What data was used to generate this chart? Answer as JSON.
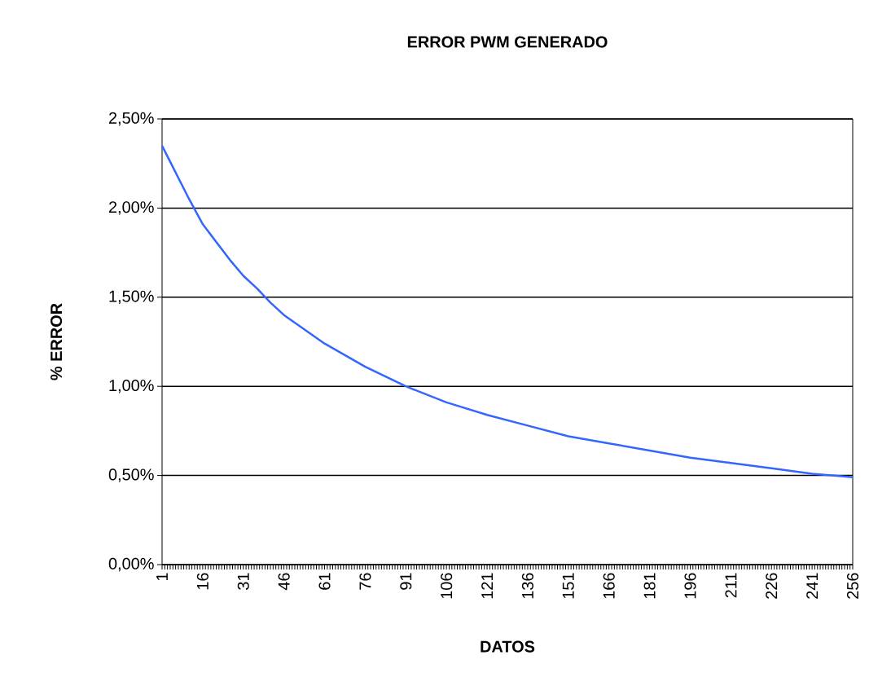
{
  "chart_data": {
    "type": "line",
    "title": "ERROR PWM GENERADO",
    "xlabel": "DATOS",
    "ylabel": "% ERROR",
    "x": [
      1,
      6,
      11,
      16,
      21,
      26,
      31,
      36,
      41,
      46,
      61,
      76,
      91,
      106,
      121,
      136,
      151,
      166,
      181,
      196,
      211,
      226,
      241,
      256
    ],
    "series": [
      {
        "color": "#3366ff",
        "values": [
          2.35,
          2.2,
          2.05,
          1.91,
          1.81,
          1.71,
          1.62,
          1.55,
          1.47,
          1.4,
          1.24,
          1.11,
          1.0,
          0.91,
          0.84,
          0.78,
          0.72,
          0.68,
          0.64,
          0.6,
          0.57,
          0.54,
          0.51,
          0.49
        ]
      }
    ],
    "xlim": [
      1,
      256
    ],
    "ylim": [
      0,
      2.5
    ],
    "yticks": [
      {
        "value": 0,
        "label": "0,00%"
      },
      {
        "value": 0.5,
        "label": "0,50%"
      },
      {
        "value": 1,
        "label": "1,00%"
      },
      {
        "value": 1.5,
        "label": "1,50%"
      },
      {
        "value": 2,
        "label": "2,00%"
      },
      {
        "value": 2.5,
        "label": "2,50%"
      }
    ],
    "xticks": [
      1,
      {
        "value": 2,
        "label": null
      },
      {
        "value": 3,
        "label": null
      },
      {
        "value": 4,
        "label": null
      },
      {
        "value": 5,
        "label": null
      },
      {
        "value": 6,
        "label": null
      },
      {
        "value": 7,
        "label": null
      },
      {
        "value": 8,
        "label": null
      },
      {
        "value": 9,
        "label": null
      },
      {
        "value": 10,
        "label": null
      },
      {
        "value": 11,
        "label": null
      },
      {
        "value": 12,
        "label": null
      },
      {
        "value": 13,
        "label": null
      },
      {
        "value": 14,
        "label": null
      },
      {
        "value": 15,
        "label": null
      },
      16,
      {
        "value": 17,
        "label": null
      },
      {
        "value": 18,
        "label": null
      },
      {
        "value": 19,
        "label": null
      },
      {
        "value": 20,
        "label": null
      },
      {
        "value": 21,
        "label": null
      },
      {
        "value": 22,
        "label": null
      },
      {
        "value": 23,
        "label": null
      },
      {
        "value": 24,
        "label": null
      },
      {
        "value": 25,
        "label": null
      },
      {
        "value": 26,
        "label": null
      },
      {
        "value": 27,
        "label": null
      },
      {
        "value": 28,
        "label": null
      },
      {
        "value": 29,
        "label": null
      },
      {
        "value": 30,
        "label": null
      },
      31,
      {
        "value": 32,
        "label": null
      },
      {
        "value": 33,
        "label": null
      },
      {
        "value": 34,
        "label": null
      },
      {
        "value": 35,
        "label": null
      },
      {
        "value": 36,
        "label": null
      },
      {
        "value": 37,
        "label": null
      },
      {
        "value": 38,
        "label": null
      },
      {
        "value": 39,
        "label": null
      },
      {
        "value": 40,
        "label": null
      },
      {
        "value": 41,
        "label": null
      },
      {
        "value": 42,
        "label": null
      },
      {
        "value": 43,
        "label": null
      },
      {
        "value": 44,
        "label": null
      },
      {
        "value": 45,
        "label": null
      },
      46,
      {
        "value": 47,
        "label": null
      },
      {
        "value": 48,
        "label": null
      },
      {
        "value": 49,
        "label": null
      },
      {
        "value": 50,
        "label": null
      },
      {
        "value": 51,
        "label": null
      },
      {
        "value": 52,
        "label": null
      },
      {
        "value": 53,
        "label": null
      },
      {
        "value": 54,
        "label": null
      },
      {
        "value": 55,
        "label": null
      },
      {
        "value": 56,
        "label": null
      },
      {
        "value": 57,
        "label": null
      },
      {
        "value": 58,
        "label": null
      },
      {
        "value": 59,
        "label": null
      },
      {
        "value": 60,
        "label": null
      },
      61,
      {
        "value": 62,
        "label": null
      },
      {
        "value": 63,
        "label": null
      },
      {
        "value": 64,
        "label": null
      },
      {
        "value": 65,
        "label": null
      },
      {
        "value": 66,
        "label": null
      },
      {
        "value": 67,
        "label": null
      },
      {
        "value": 68,
        "label": null
      },
      {
        "value": 69,
        "label": null
      },
      {
        "value": 70,
        "label": null
      },
      {
        "value": 71,
        "label": null
      },
      {
        "value": 72,
        "label": null
      },
      {
        "value": 73,
        "label": null
      },
      {
        "value": 74,
        "label": null
      },
      {
        "value": 75,
        "label": null
      },
      76,
      {
        "value": 77,
        "label": null
      },
      {
        "value": 78,
        "label": null
      },
      {
        "value": 79,
        "label": null
      },
      {
        "value": 80,
        "label": null
      },
      {
        "value": 81,
        "label": null
      },
      {
        "value": 82,
        "label": null
      },
      {
        "value": 83,
        "label": null
      },
      {
        "value": 84,
        "label": null
      },
      {
        "value": 85,
        "label": null
      },
      {
        "value": 86,
        "label": null
      },
      {
        "value": 87,
        "label": null
      },
      {
        "value": 88,
        "label": null
      },
      {
        "value": 89,
        "label": null
      },
      {
        "value": 90,
        "label": null
      },
      91,
      {
        "value": 92,
        "label": null
      },
      {
        "value": 93,
        "label": null
      },
      {
        "value": 94,
        "label": null
      },
      {
        "value": 95,
        "label": null
      },
      {
        "value": 96,
        "label": null
      },
      {
        "value": 97,
        "label": null
      },
      {
        "value": 98,
        "label": null
      },
      {
        "value": 99,
        "label": null
      },
      {
        "value": 100,
        "label": null
      },
      {
        "value": 101,
        "label": null
      },
      {
        "value": 102,
        "label": null
      },
      {
        "value": 103,
        "label": null
      },
      {
        "value": 104,
        "label": null
      },
      {
        "value": 105,
        "label": null
      },
      106,
      {
        "value": 107,
        "label": null
      },
      {
        "value": 108,
        "label": null
      },
      {
        "value": 109,
        "label": null
      },
      {
        "value": 110,
        "label": null
      },
      {
        "value": 111,
        "label": null
      },
      {
        "value": 112,
        "label": null
      },
      {
        "value": 113,
        "label": null
      },
      {
        "value": 114,
        "label": null
      },
      {
        "value": 115,
        "label": null
      },
      {
        "value": 116,
        "label": null
      },
      {
        "value": 117,
        "label": null
      },
      {
        "value": 118,
        "label": null
      },
      {
        "value": 119,
        "label": null
      },
      {
        "value": 120,
        "label": null
      },
      121,
      {
        "value": 122,
        "label": null
      },
      {
        "value": 123,
        "label": null
      },
      {
        "value": 124,
        "label": null
      },
      {
        "value": 125,
        "label": null
      },
      {
        "value": 126,
        "label": null
      },
      {
        "value": 127,
        "label": null
      },
      {
        "value": 128,
        "label": null
      },
      {
        "value": 129,
        "label": null
      },
      {
        "value": 130,
        "label": null
      },
      {
        "value": 131,
        "label": null
      },
      {
        "value": 132,
        "label": null
      },
      {
        "value": 133,
        "label": null
      },
      {
        "value": 134,
        "label": null
      },
      {
        "value": 135,
        "label": null
      },
      136,
      {
        "value": 137,
        "label": null
      },
      {
        "value": 138,
        "label": null
      },
      {
        "value": 139,
        "label": null
      },
      {
        "value": 140,
        "label": null
      },
      {
        "value": 141,
        "label": null
      },
      {
        "value": 142,
        "label": null
      },
      {
        "value": 143,
        "label": null
      },
      {
        "value": 144,
        "label": null
      },
      {
        "value": 145,
        "label": null
      },
      {
        "value": 146,
        "label": null
      },
      {
        "value": 147,
        "label": null
      },
      {
        "value": 148,
        "label": null
      },
      {
        "value": 149,
        "label": null
      },
      {
        "value": 150,
        "label": null
      },
      151,
      {
        "value": 152,
        "label": null
      },
      {
        "value": 153,
        "label": null
      },
      {
        "value": 154,
        "label": null
      },
      {
        "value": 155,
        "label": null
      },
      {
        "value": 156,
        "label": null
      },
      {
        "value": 157,
        "label": null
      },
      {
        "value": 158,
        "label": null
      },
      {
        "value": 159,
        "label": null
      },
      {
        "value": 160,
        "label": null
      },
      {
        "value": 161,
        "label": null
      },
      {
        "value": 162,
        "label": null
      },
      {
        "value": 163,
        "label": null
      },
      {
        "value": 164,
        "label": null
      },
      {
        "value": 165,
        "label": null
      },
      166,
      {
        "value": 167,
        "label": null
      },
      {
        "value": 168,
        "label": null
      },
      {
        "value": 169,
        "label": null
      },
      {
        "value": 170,
        "label": null
      },
      {
        "value": 171,
        "label": null
      },
      {
        "value": 172,
        "label": null
      },
      {
        "value": 173,
        "label": null
      },
      {
        "value": 174,
        "label": null
      },
      {
        "value": 175,
        "label": null
      },
      {
        "value": 176,
        "label": null
      },
      {
        "value": 177,
        "label": null
      },
      {
        "value": 178,
        "label": null
      },
      {
        "value": 179,
        "label": null
      },
      {
        "value": 180,
        "label": null
      },
      181,
      {
        "value": 182,
        "label": null
      },
      {
        "value": 183,
        "label": null
      },
      {
        "value": 184,
        "label": null
      },
      {
        "value": 185,
        "label": null
      },
      {
        "value": 186,
        "label": null
      },
      {
        "value": 187,
        "label": null
      },
      {
        "value": 188,
        "label": null
      },
      {
        "value": 189,
        "label": null
      },
      {
        "value": 190,
        "label": null
      },
      {
        "value": 191,
        "label": null
      },
      {
        "value": 192,
        "label": null
      },
      {
        "value": 193,
        "label": null
      },
      {
        "value": 194,
        "label": null
      },
      {
        "value": 195,
        "label": null
      },
      196,
      {
        "value": 197,
        "label": null
      },
      {
        "value": 198,
        "label": null
      },
      {
        "value": 199,
        "label": null
      },
      {
        "value": 200,
        "label": null
      },
      {
        "value": 201,
        "label": null
      },
      {
        "value": 202,
        "label": null
      },
      {
        "value": 203,
        "label": null
      },
      {
        "value": 204,
        "label": null
      },
      {
        "value": 205,
        "label": null
      },
      {
        "value": 206,
        "label": null
      },
      {
        "value": 207,
        "label": null
      },
      {
        "value": 208,
        "label": null
      },
      {
        "value": 209,
        "label": null
      },
      {
        "value": 210,
        "label": null
      },
      211,
      {
        "value": 212,
        "label": null
      },
      {
        "value": 213,
        "label": null
      },
      {
        "value": 214,
        "label": null
      },
      {
        "value": 215,
        "label": null
      },
      {
        "value": 216,
        "label": null
      },
      {
        "value": 217,
        "label": null
      },
      {
        "value": 218,
        "label": null
      },
      {
        "value": 219,
        "label": null
      },
      {
        "value": 220,
        "label": null
      },
      {
        "value": 221,
        "label": null
      },
      {
        "value": 222,
        "label": null
      },
      {
        "value": 223,
        "label": null
      },
      {
        "value": 224,
        "label": null
      },
      {
        "value": 225,
        "label": null
      },
      226,
      {
        "value": 227,
        "label": null
      },
      {
        "value": 228,
        "label": null
      },
      {
        "value": 229,
        "label": null
      },
      {
        "value": 230,
        "label": null
      },
      {
        "value": 231,
        "label": null
      },
      {
        "value": 232,
        "label": null
      },
      {
        "value": 233,
        "label": null
      },
      {
        "value": 234,
        "label": null
      },
      {
        "value": 235,
        "label": null
      },
      {
        "value": 236,
        "label": null
      },
      {
        "value": 237,
        "label": null
      },
      {
        "value": 238,
        "label": null
      },
      {
        "value": 239,
        "label": null
      },
      {
        "value": 240,
        "label": null
      },
      241,
      {
        "value": 242,
        "label": null
      },
      {
        "value": 243,
        "label": null
      },
      {
        "value": 244,
        "label": null
      },
      {
        "value": 245,
        "label": null
      },
      {
        "value": 246,
        "label": null
      },
      {
        "value": 247,
        "label": null
      },
      {
        "value": 248,
        "label": null
      },
      {
        "value": 249,
        "label": null
      },
      {
        "value": 250,
        "label": null
      },
      {
        "value": 251,
        "label": null
      },
      {
        "value": 252,
        "label": null
      },
      {
        "value": 253,
        "label": null
      },
      {
        "value": 254,
        "label": null
      },
      {
        "value": 255,
        "label": null
      },
      256
    ],
    "grid": "y",
    "legend": false,
    "marker": "none",
    "line_style": "solid"
  }
}
